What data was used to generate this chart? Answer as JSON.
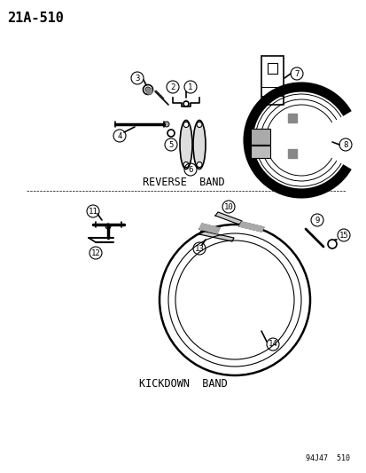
{
  "page_id": "21A-510",
  "bg_color": "#ffffff",
  "line_color": "#000000",
  "title_fontsize": 11,
  "label_fontsize": 8.5,
  "part_label_fontsize": 7.5,
  "diagram_title_top": "REVERSE  BAND",
  "diagram_title_bottom": "KICKDOWN  BAND",
  "footer": "94J47  510",
  "parts": [
    1,
    2,
    3,
    4,
    5,
    6,
    7,
    8,
    9,
    10,
    11,
    12,
    13,
    14,
    15
  ]
}
